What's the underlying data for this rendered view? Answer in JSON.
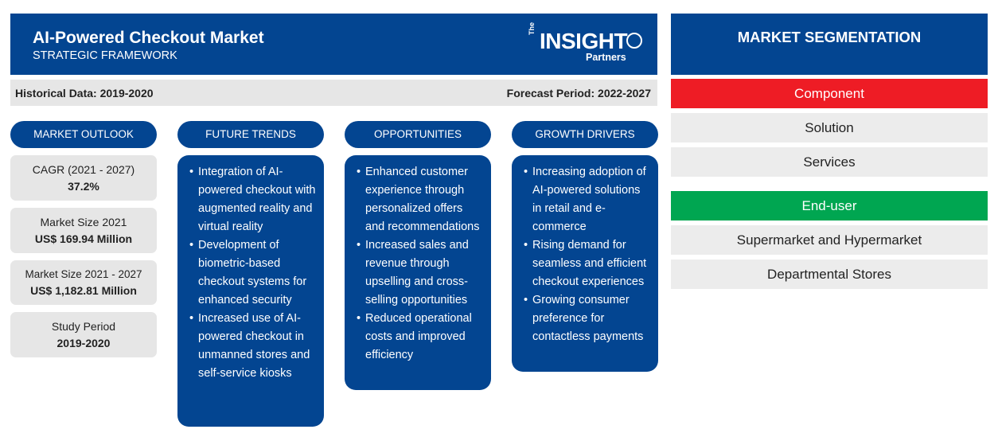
{
  "header": {
    "title": "AI-Powered Checkout Market",
    "subtitle": "STRATEGIC FRAMEWORK",
    "logo": {
      "the": "The",
      "main": "INSIGHT",
      "sub": "Partners"
    }
  },
  "period": {
    "historical": "Historical Data: 2019-2020",
    "forecast": "Forecast Period: 2022-2027"
  },
  "outlook": {
    "heading": "MARKET OUTLOOK",
    "stats": [
      {
        "label": "CAGR (2021 - 2027)",
        "value": "37.2%"
      },
      {
        "label": "Market Size 2021",
        "value": "US$ 169.94 Million"
      },
      {
        "label": "Market Size 2021 - 2027",
        "value": "US$ 1,182.81 Million"
      },
      {
        "label": "Study Period",
        "value": "2019-2020"
      }
    ]
  },
  "columns": [
    {
      "heading": "FUTURE TRENDS",
      "items": [
        "Integration of AI-powered checkout with augmented reality and virtual reality",
        "Development of biometric-based checkout systems for enhanced security",
        "Increased use of AI-powered checkout in unmanned stores and self-service kiosks"
      ]
    },
    {
      "heading": "OPPORTUNITIES",
      "items": [
        "Enhanced customer experience through personalized offers and recommendations",
        "Increased sales and revenue through upselling and cross-selling opportunities",
        "Reduced operational costs and improved efficiency"
      ]
    },
    {
      "heading": "GROWTH DRIVERS",
      "items": [
        "Increasing adoption of AI-powered solutions in retail and e-commerce",
        "Rising demand for seamless and efficient checkout experiences",
        "Growing consumer preference for contactless payments"
      ]
    }
  ],
  "segmentation": {
    "heading": "MARKET SEGMENTATION",
    "groups": [
      {
        "name": "Component",
        "color": "#ee1c25",
        "items": [
          "Solution",
          "Services"
        ]
      },
      {
        "name": "End-user",
        "color": "#00a651",
        "items": [
          "Supermarket and Hypermarket",
          "Departmental Stores"
        ]
      }
    ]
  },
  "colors": {
    "primary": "#034591",
    "panel": "#e6e6e6"
  }
}
